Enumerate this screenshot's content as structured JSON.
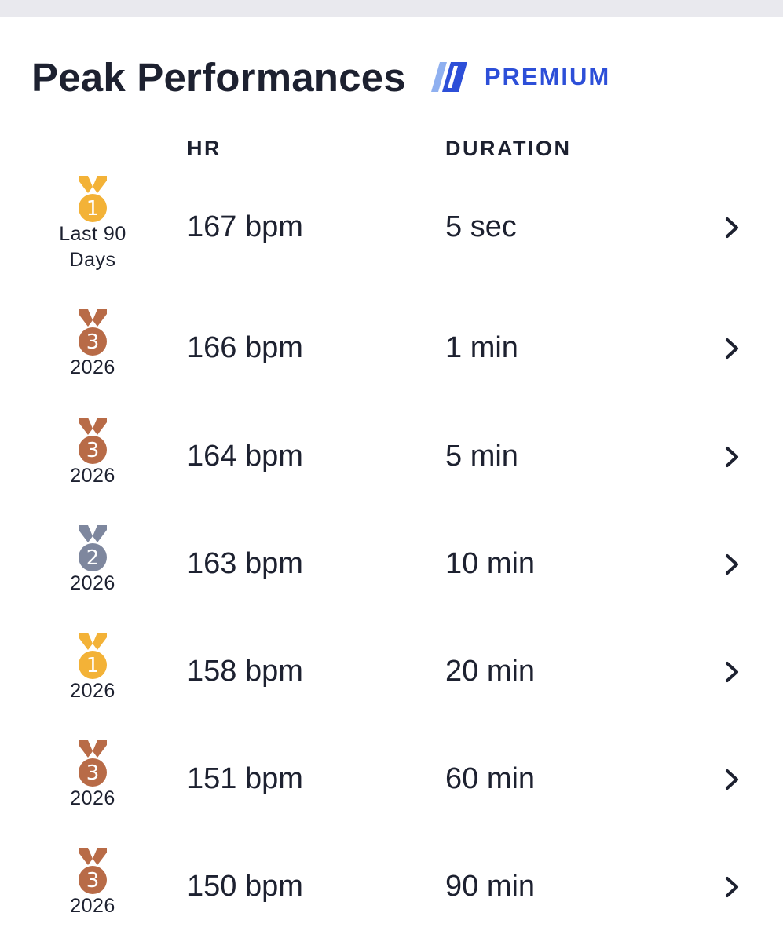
{
  "header": {
    "title": "Peak Performances",
    "premium_label": "PREMIUM",
    "premium_icon": "premium-stripes-icon"
  },
  "columns": {
    "hr": "HR",
    "duration": "DURATION"
  },
  "colors": {
    "gold": "#f3b237",
    "silver": "#7e879e",
    "bronze": "#b86b47",
    "premium_blue": "#2d4fd8",
    "text": "#1d2130"
  },
  "rows": [
    {
      "rank": "1",
      "medal": "gold",
      "period": "Last 90 Days",
      "hr": "167 bpm",
      "duration": "5 sec"
    },
    {
      "rank": "3",
      "medal": "bronze",
      "period": "2026",
      "hr": "166 bpm",
      "duration": "1 min"
    },
    {
      "rank": "3",
      "medal": "bronze",
      "period": "2026",
      "hr": "164 bpm",
      "duration": "5 min"
    },
    {
      "rank": "2",
      "medal": "silver",
      "period": "2026",
      "hr": "163 bpm",
      "duration": "10 min"
    },
    {
      "rank": "1",
      "medal": "gold",
      "period": "2026",
      "hr": "158 bpm",
      "duration": "20 min"
    },
    {
      "rank": "3",
      "medal": "bronze",
      "period": "2026",
      "hr": "151 bpm",
      "duration": "60 min"
    },
    {
      "rank": "3",
      "medal": "bronze",
      "period": "2026",
      "hr": "150 bpm",
      "duration": "90 min"
    }
  ]
}
